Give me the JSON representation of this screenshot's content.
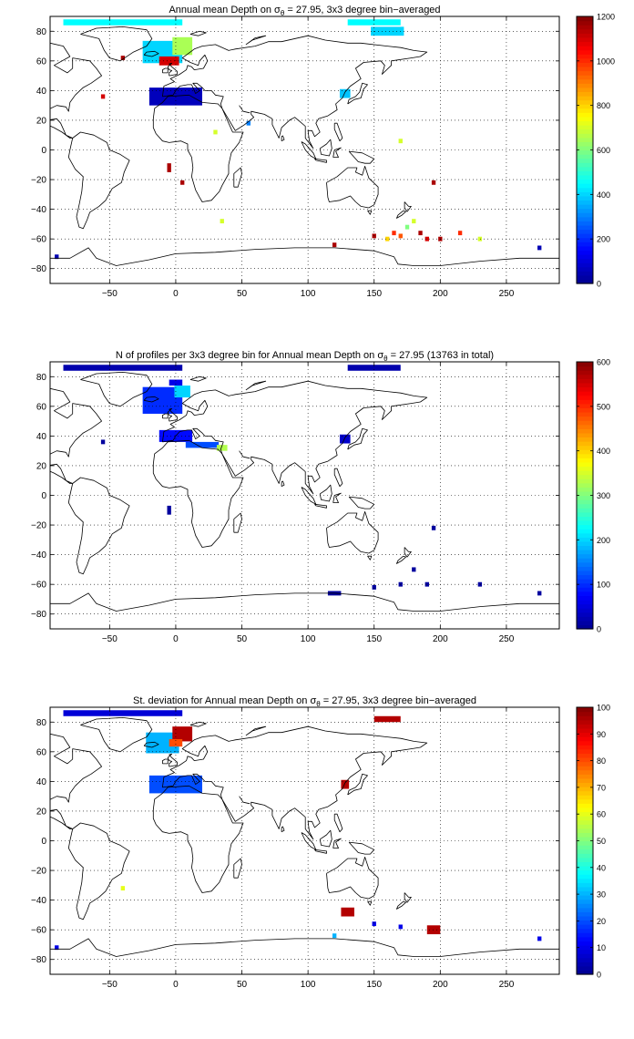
{
  "colormap": [
    "#00008f",
    "#0000ff",
    "#0080ff",
    "#00ffff",
    "#80ff80",
    "#ffff00",
    "#ff8000",
    "#ff0000",
    "#800000"
  ],
  "chart_data": [
    {
      "type": "heatmap",
      "title": {
        "pre": "Annual mean Depth on ",
        "sym": "σ",
        "sub": "θ",
        "post": " = 27.95, 3x3 degree bin−averaged"
      },
      "xlim": [
        -95,
        290
      ],
      "ylim": [
        -90,
        90
      ],
      "x_ticks": [
        -50,
        0,
        50,
        100,
        150,
        200,
        250
      ],
      "x_tick_labels": [
        "−50",
        "0",
        "50",
        "100",
        "150",
        "200",
        "250"
      ],
      "y_ticks": [
        -80,
        -60,
        -40,
        -20,
        0,
        20,
        40,
        60,
        80
      ],
      "y_tick_labels": [
        "−80",
        "−60",
        "−40",
        "−20",
        "0",
        "20",
        "40",
        "60",
        "80"
      ],
      "grid": true,
      "colorbar": {
        "min": 0,
        "max": 1200,
        "ticks": [
          0,
          200,
          400,
          600,
          800,
          1000,
          1200
        ]
      },
      "cells": [
        {
          "lon": -10,
          "lat": 66,
          "w": 30,
          "h": 15,
          "v": 400
        },
        {
          "lon": 5,
          "lat": 70,
          "w": 15,
          "h": 12,
          "v": 650
        },
        {
          "lon": -5,
          "lat": 60,
          "w": 15,
          "h": 6,
          "v": 1100
        },
        {
          "lon": -40,
          "lat": 86,
          "w": 90,
          "h": 4,
          "v": 450
        },
        {
          "lon": 150,
          "lat": 86,
          "w": 40,
          "h": 4,
          "v": 450
        },
        {
          "lon": 160,
          "lat": 80,
          "w": 25,
          "h": 6,
          "v": 400
        },
        {
          "lon": 0,
          "lat": 36,
          "w": 40,
          "h": 12,
          "v": 60
        },
        {
          "lon": 128,
          "lat": 38,
          "w": 8,
          "h": 6,
          "v": 380
        },
        {
          "lon": -40,
          "lat": 62,
          "w": 3,
          "h": 3,
          "v": 1150
        },
        {
          "lon": -55,
          "lat": 36,
          "w": 3,
          "h": 3,
          "v": 1100
        },
        {
          "lon": 30,
          "lat": 12,
          "w": 3,
          "h": 3,
          "v": 700
        },
        {
          "lon": 55,
          "lat": 18,
          "w": 3,
          "h": 3,
          "v": 300
        },
        {
          "lon": -5,
          "lat": -12,
          "w": 3,
          "h": 6,
          "v": 1150
        },
        {
          "lon": 5,
          "lat": -22,
          "w": 3,
          "h": 3,
          "v": 1150
        },
        {
          "lon": 35,
          "lat": -48,
          "w": 3,
          "h": 3,
          "v": 700
        },
        {
          "lon": 170,
          "lat": 6,
          "w": 3,
          "h": 3,
          "v": 700
        },
        {
          "lon": 195,
          "lat": -22,
          "w": 3,
          "h": 3,
          "v": 1150
        },
        {
          "lon": 120,
          "lat": -64,
          "w": 3,
          "h": 3,
          "v": 1150
        },
        {
          "lon": 150,
          "lat": -58,
          "w": 3,
          "h": 3,
          "v": 1150
        },
        {
          "lon": 160,
          "lat": -60,
          "w": 3,
          "h": 3,
          "v": 800
        },
        {
          "lon": 165,
          "lat": -56,
          "w": 3,
          "h": 3,
          "v": 1000
        },
        {
          "lon": 170,
          "lat": -58,
          "w": 3,
          "h": 3,
          "v": 950
        },
        {
          "lon": 175,
          "lat": -52,
          "w": 3,
          "h": 3,
          "v": 600
        },
        {
          "lon": 180,
          "lat": -48,
          "w": 3,
          "h": 3,
          "v": 700
        },
        {
          "lon": 185,
          "lat": -56,
          "w": 3,
          "h": 3,
          "v": 1150
        },
        {
          "lon": 190,
          "lat": -60,
          "w": 3,
          "h": 3,
          "v": 1100
        },
        {
          "lon": 200,
          "lat": -60,
          "w": 3,
          "h": 3,
          "v": 1150
        },
        {
          "lon": 215,
          "lat": -56,
          "w": 3,
          "h": 3,
          "v": 1000
        },
        {
          "lon": 230,
          "lat": -60,
          "w": 3,
          "h": 3,
          "v": 700
        },
        {
          "lon": -90,
          "lat": -72,
          "w": 3,
          "h": 3,
          "v": 50
        },
        {
          "lon": 275,
          "lat": -66,
          "w": 3,
          "h": 3,
          "v": 50
        }
      ]
    },
    {
      "type": "heatmap",
      "title": {
        "pre": "N of profiles per 3x3 degree bin for Annual mean Depth on ",
        "sym": "σ",
        "sub": "θ",
        "post": " = 27.95 (13763 in total)"
      },
      "xlim": [
        -95,
        290
      ],
      "ylim": [
        -90,
        90
      ],
      "x_ticks": [
        -50,
        0,
        50,
        100,
        150,
        200,
        250
      ],
      "x_tick_labels": [
        "−50",
        "0",
        "50",
        "100",
        "150",
        "200",
        "250"
      ],
      "y_ticks": [
        -80,
        -60,
        -40,
        -20,
        0,
        20,
        40,
        60,
        80
      ],
      "y_tick_labels": [
        "−80",
        "−60",
        "−40",
        "−20",
        "0",
        "20",
        "40",
        "60",
        "80"
      ],
      "grid": true,
      "colorbar": {
        "min": 0,
        "max": 600,
        "ticks": [
          0,
          100,
          200,
          300,
          400,
          500,
          600
        ]
      },
      "cells": [
        {
          "lon": -10,
          "lat": 64,
          "w": 30,
          "h": 18,
          "v": 100
        },
        {
          "lon": 5,
          "lat": 70,
          "w": 12,
          "h": 8,
          "v": 200
        },
        {
          "lon": 0,
          "lat": 76,
          "w": 10,
          "h": 4,
          "v": 60
        },
        {
          "lon": 0,
          "lat": 40,
          "w": 25,
          "h": 8,
          "v": 80
        },
        {
          "lon": 20,
          "lat": 34,
          "w": 25,
          "h": 4,
          "v": 120
        },
        {
          "lon": 35,
          "lat": 32,
          "w": 8,
          "h": 4,
          "v": 330
        },
        {
          "lon": 128,
          "lat": 38,
          "w": 8,
          "h": 6,
          "v": 40
        },
        {
          "lon": -40,
          "lat": 86,
          "w": 90,
          "h": 4,
          "v": 20
        },
        {
          "lon": 150,
          "lat": 86,
          "w": 40,
          "h": 4,
          "v": 20
        },
        {
          "lon": -55,
          "lat": 36,
          "w": 3,
          "h": 3,
          "v": 10
        },
        {
          "lon": -5,
          "lat": -10,
          "w": 3,
          "h": 6,
          "v": 10
        },
        {
          "lon": 195,
          "lat": -22,
          "w": 3,
          "h": 3,
          "v": 10
        },
        {
          "lon": 150,
          "lat": -62,
          "w": 3,
          "h": 3,
          "v": 10
        },
        {
          "lon": 170,
          "lat": -60,
          "w": 3,
          "h": 3,
          "v": 10
        },
        {
          "lon": 180,
          "lat": -50,
          "w": 3,
          "h": 3,
          "v": 10
        },
        {
          "lon": 190,
          "lat": -60,
          "w": 3,
          "h": 3,
          "v": 10
        },
        {
          "lon": 120,
          "lat": -66,
          "w": 10,
          "h": 3,
          "v": 10
        },
        {
          "lon": 230,
          "lat": -60,
          "w": 3,
          "h": 3,
          "v": 10
        },
        {
          "lon": 275,
          "lat": -66,
          "w": 3,
          "h": 3,
          "v": 10
        }
      ]
    },
    {
      "type": "heatmap",
      "title": {
        "pre": "St. deviation for Annual mean Depth on ",
        "sym": "σ",
        "sub": "θ",
        "post": " = 27.95, 3x3 degree bin−averaged"
      },
      "xlim": [
        -95,
        290
      ],
      "ylim": [
        -90,
        90
      ],
      "x_ticks": [
        -50,
        0,
        50,
        100,
        150,
        200,
        250
      ],
      "x_tick_labels": [
        "−50",
        "0",
        "50",
        "100",
        "150",
        "200",
        "250"
      ],
      "y_ticks": [
        -80,
        -60,
        -40,
        -20,
        0,
        20,
        40,
        60,
        80
      ],
      "y_tick_labels": [
        "−80",
        "−60",
        "−40",
        "−20",
        "0",
        "20",
        "40",
        "60",
        "80"
      ],
      "grid": true,
      "colorbar": {
        "min": 0,
        "max": 100,
        "ticks": [
          0,
          10,
          20,
          30,
          40,
          50,
          60,
          70,
          80,
          90,
          100
        ]
      },
      "cells": [
        {
          "lon": -10,
          "lat": 66,
          "w": 25,
          "h": 14,
          "v": 30
        },
        {
          "lon": 5,
          "lat": 72,
          "w": 15,
          "h": 10,
          "v": 95
        },
        {
          "lon": 0,
          "lat": 66,
          "w": 10,
          "h": 5,
          "v": 80
        },
        {
          "lon": 0,
          "lat": 38,
          "w": 40,
          "h": 12,
          "v": 20
        },
        {
          "lon": 128,
          "lat": 38,
          "w": 6,
          "h": 6,
          "v": 95
        },
        {
          "lon": -40,
          "lat": 86,
          "w": 90,
          "h": 4,
          "v": 8
        },
        {
          "lon": 160,
          "lat": 82,
          "w": 20,
          "h": 4,
          "v": 95
        },
        {
          "lon": -40,
          "lat": -32,
          "w": 3,
          "h": 3,
          "v": 60
        },
        {
          "lon": 130,
          "lat": -48,
          "w": 10,
          "h": 6,
          "v": 95
        },
        {
          "lon": 195,
          "lat": -60,
          "w": 10,
          "h": 6,
          "v": 95
        },
        {
          "lon": 120,
          "lat": -64,
          "w": 3,
          "h": 3,
          "v": 30
        },
        {
          "lon": 150,
          "lat": -56,
          "w": 3,
          "h": 3,
          "v": 10
        },
        {
          "lon": 170,
          "lat": -58,
          "w": 3,
          "h": 3,
          "v": 10
        },
        {
          "lon": -90,
          "lat": -72,
          "w": 3,
          "h": 3,
          "v": 10
        },
        {
          "lon": 275,
          "lat": -66,
          "w": 3,
          "h": 3,
          "v": 10
        }
      ]
    }
  ]
}
